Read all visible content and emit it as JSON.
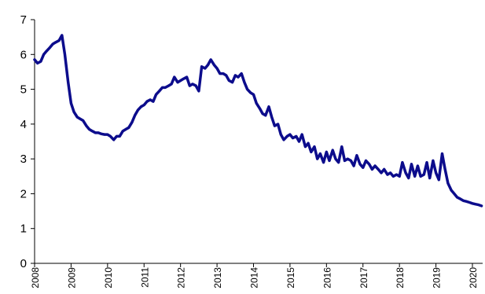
{
  "chart_data": {
    "type": "line",
    "title": "",
    "xlabel": "",
    "ylabel": "",
    "ylim": [
      0,
      7
    ],
    "xlim": [
      2008,
      2020.28
    ],
    "y_ticks": [
      "0",
      "1",
      "2",
      "3",
      "4",
      "5",
      "6",
      "7"
    ],
    "x_ticks": [
      "2008",
      "2009",
      "2010",
      "2011",
      "2012",
      "2013",
      "2014",
      "2015",
      "2016",
      "2017",
      "2018",
      "2019",
      "2020"
    ],
    "grid": false,
    "legend": "none",
    "line_color": "#0c0c8c",
    "series": [
      {
        "x": [
          2008.0,
          2008.08,
          2008.17,
          2008.25,
          2008.33,
          2008.42,
          2008.5,
          2008.58,
          2008.67,
          2008.75,
          2008.83,
          2008.92,
          2009.0,
          2009.08,
          2009.17,
          2009.25,
          2009.33,
          2009.42,
          2009.5,
          2009.58,
          2009.67,
          2009.75,
          2009.83,
          2009.92,
          2010.0,
          2010.08,
          2010.17,
          2010.25,
          2010.33,
          2010.42,
          2010.5,
          2010.58,
          2010.67,
          2010.75,
          2010.83,
          2010.92,
          2011.0,
          2011.08,
          2011.17,
          2011.25,
          2011.33,
          2011.42,
          2011.5,
          2011.58,
          2011.67,
          2011.75,
          2011.83,
          2011.92,
          2012.0,
          2012.08,
          2012.17,
          2012.25,
          2012.33,
          2012.42,
          2012.5,
          2012.58,
          2012.67,
          2012.75,
          2012.83,
          2012.92,
          2013.0,
          2013.08,
          2013.17,
          2013.25,
          2013.33,
          2013.42,
          2013.5,
          2013.58,
          2013.67,
          2013.75,
          2013.83,
          2013.92,
          2014.0,
          2014.08,
          2014.17,
          2014.25,
          2014.33,
          2014.42,
          2014.5,
          2014.58,
          2014.67,
          2014.75,
          2014.83,
          2014.92,
          2015.0,
          2015.08,
          2015.17,
          2015.25,
          2015.33,
          2015.42,
          2015.5,
          2015.58,
          2015.67,
          2015.75,
          2015.83,
          2015.92,
          2016.0,
          2016.08,
          2016.17,
          2016.25,
          2016.33,
          2016.42,
          2016.5,
          2016.58,
          2016.67,
          2016.75,
          2016.83,
          2016.92,
          2017.0,
          2017.08,
          2017.17,
          2017.25,
          2017.33,
          2017.42,
          2017.5,
          2017.58,
          2017.67,
          2017.75,
          2017.83,
          2017.92,
          2018.0,
          2018.08,
          2018.17,
          2018.25,
          2018.33,
          2018.42,
          2018.5,
          2018.58,
          2018.67,
          2018.75,
          2018.83,
          2018.92,
          2019.0,
          2019.08,
          2019.17,
          2019.25,
          2019.33,
          2019.42,
          2019.5,
          2019.58,
          2019.67,
          2019.75,
          2019.83,
          2019.92,
          2020.0,
          2020.08,
          2020.17,
          2020.25
        ],
        "y": [
          5.85,
          5.75,
          5.8,
          6.0,
          6.1,
          6.2,
          6.3,
          6.35,
          6.4,
          6.55,
          6.0,
          5.2,
          4.6,
          4.35,
          4.2,
          4.15,
          4.1,
          3.95,
          3.85,
          3.8,
          3.75,
          3.75,
          3.72,
          3.7,
          3.7,
          3.65,
          3.55,
          3.65,
          3.65,
          3.8,
          3.85,
          3.9,
          4.05,
          4.25,
          4.4,
          4.5,
          4.55,
          4.65,
          4.7,
          4.65,
          4.85,
          4.95,
          5.05,
          5.05,
          5.1,
          5.15,
          5.35,
          5.2,
          5.25,
          5.3,
          5.35,
          5.1,
          5.15,
          5.1,
          4.95,
          5.65,
          5.6,
          5.7,
          5.85,
          5.7,
          5.6,
          5.45,
          5.45,
          5.4,
          5.25,
          5.2,
          5.4,
          5.35,
          5.45,
          5.2,
          5.0,
          4.9,
          4.85,
          4.6,
          4.45,
          4.3,
          4.25,
          4.5,
          4.2,
          3.95,
          4.0,
          3.7,
          3.55,
          3.65,
          3.7,
          3.6,
          3.65,
          3.5,
          3.7,
          3.35,
          3.45,
          3.2,
          3.35,
          3.0,
          3.15,
          2.9,
          3.2,
          2.95,
          3.25,
          3.0,
          2.9,
          3.35,
          2.95,
          3.0,
          2.95,
          2.8,
          3.1,
          2.85,
          2.75,
          2.95,
          2.85,
          2.7,
          2.8,
          2.7,
          2.6,
          2.7,
          2.55,
          2.6,
          2.5,
          2.55,
          2.5,
          2.9,
          2.6,
          2.45,
          2.85,
          2.5,
          2.8,
          2.5,
          2.55,
          2.9,
          2.45,
          2.95,
          2.6,
          2.4,
          3.15,
          2.7,
          2.3,
          2.1,
          2.0,
          1.9,
          1.85,
          1.8,
          1.78,
          1.75,
          1.72,
          1.7,
          1.68,
          1.65
        ]
      }
    ]
  }
}
